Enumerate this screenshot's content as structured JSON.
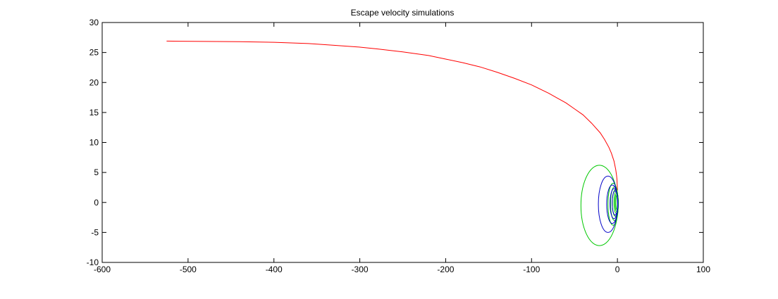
{
  "chart_data": {
    "type": "line",
    "title": "Escape velocity simulations",
    "xlabel": "",
    "ylabel": "",
    "xlim": [
      -600,
      100
    ],
    "ylim": [
      -10,
      30
    ],
    "xticks": [
      -600,
      -500,
      -400,
      -300,
      -200,
      -100,
      0,
      100
    ],
    "yticks": [
      -10,
      -5,
      0,
      5,
      10,
      15,
      20,
      25,
      30
    ],
    "xtick_labels": [
      "-600",
      "-500",
      "-400",
      "-300",
      "-200",
      "-100",
      "0",
      "100"
    ],
    "ytick_labels": [
      "-10",
      "-5",
      "0",
      "5",
      "10",
      "15",
      "20",
      "25",
      "30"
    ],
    "grid": false,
    "legend": "none",
    "series": [
      {
        "color": "#ff0000",
        "kind": "escape-trajectory",
        "x": [
          0,
          -0.5,
          -1,
          -2,
          -4,
          -7,
          -10,
          -15,
          -20,
          -30,
          -40,
          -50,
          -60,
          -70,
          -80,
          -100,
          -120,
          -140,
          -160,
          -180,
          -200,
          -220,
          -250,
          -280,
          -300,
          -330,
          -360,
          -400,
          -440,
          -480,
          -525
        ],
        "y": [
          2.0,
          3.8,
          4.5,
          5.5,
          6.9,
          8.2,
          9.2,
          10.5,
          11.6,
          13.2,
          14.6,
          15.6,
          16.6,
          17.4,
          18.2,
          19.6,
          20.7,
          21.7,
          22.6,
          23.3,
          23.9,
          24.5,
          25.1,
          25.6,
          25.9,
          26.2,
          26.5,
          26.7,
          26.8,
          26.85,
          26.9
        ]
      },
      {
        "color": "#00c800",
        "kind": "bound-orbits",
        "orbits": [
          {
            "cx": -21,
            "cy": -0.5,
            "rx": 21.5,
            "ry": 6.7
          },
          {
            "cx": -5,
            "cy": -0.3,
            "rx": 6,
            "ry": 3.5
          },
          {
            "cx": -3.5,
            "cy": -0.2,
            "rx": 4.5,
            "ry": 2.8
          },
          {
            "cx": -2.5,
            "cy": -0.1,
            "rx": 3.5,
            "ry": 2.2
          },
          {
            "cx": -1.5,
            "cy": 0,
            "rx": 2.5,
            "ry": 1.8
          },
          {
            "cx": -1,
            "cy": 0,
            "rx": 1.8,
            "ry": 1.5
          },
          {
            "cx": -0.6,
            "cy": 0,
            "rx": 1.2,
            "ry": 1.2
          }
        ]
      },
      {
        "color": "#0000c8",
        "kind": "bound-orbits",
        "orbits": [
          {
            "cx": -11,
            "cy": -0.3,
            "rx": 11.2,
            "ry": 4.7
          },
          {
            "cx": -6,
            "cy": -0.3,
            "rx": 6.5,
            "ry": 3.2
          },
          {
            "cx": -4,
            "cy": -0.2,
            "rx": 4.6,
            "ry": 2.5
          },
          {
            "cx": -2.8,
            "cy": -0.1,
            "rx": 3.3,
            "ry": 2.0
          }
        ]
      }
    ]
  }
}
